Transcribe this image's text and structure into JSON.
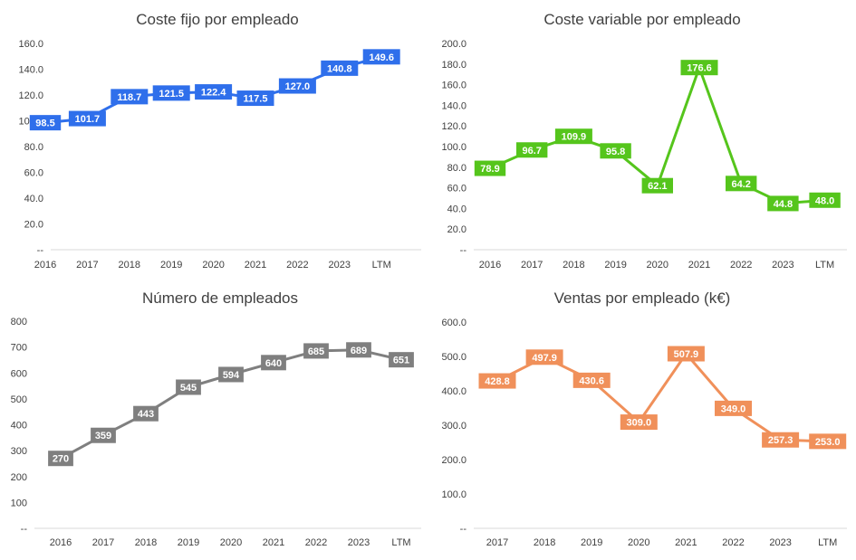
{
  "chart_data": [
    {
      "type": "line",
      "title": "Coste fijo por empleado",
      "categories": [
        "2016",
        "2017",
        "2018",
        "2019",
        "2020",
        "2021",
        "2022",
        "2023",
        "LTM"
      ],
      "values": [
        98.5,
        101.7,
        118.7,
        121.5,
        122.4,
        117.5,
        127.0,
        140.8,
        149.6
      ],
      "data_labels": [
        "98.5",
        "101.7",
        "118.7",
        "121.5",
        "122.4",
        "117.5",
        "127.0",
        "140.8",
        "149.6"
      ],
      "y_ticks": [
        "--",
        "20.0",
        "40.0",
        "60.0",
        "80.0",
        "100.0",
        "120.0",
        "140.0",
        "160.0"
      ],
      "ylim": [
        0,
        160
      ],
      "color": "#2F6FEB",
      "grid": false
    },
    {
      "type": "line",
      "title": "Coste variable por empleado",
      "categories": [
        "2016",
        "2017",
        "2018",
        "2019",
        "2020",
        "2021",
        "2022",
        "2023",
        "LTM"
      ],
      "values": [
        78.9,
        96.7,
        109.9,
        95.8,
        62.1,
        176.6,
        64.2,
        44.8,
        48.0
      ],
      "data_labels": [
        "78.9",
        "96.7",
        "109.9",
        "95.8",
        "62.1",
        "176.6",
        "64.2",
        "44.8",
        "48.0"
      ],
      "y_ticks": [
        "--",
        "20.0",
        "40.0",
        "60.0",
        "80.0",
        "100.0",
        "120.0",
        "140.0",
        "160.0",
        "180.0",
        "200.0"
      ],
      "ylim": [
        0,
        200
      ],
      "color": "#55C51C",
      "grid": false
    },
    {
      "type": "line",
      "title": "Número de empleados",
      "categories": [
        "2016",
        "2017",
        "2018",
        "2019",
        "2020",
        "2021",
        "2022",
        "2023",
        "LTM"
      ],
      "values": [
        270,
        359,
        443,
        545,
        594,
        640,
        685,
        689,
        651
      ],
      "data_labels": [
        "270",
        "359",
        "443",
        "545",
        "594",
        "640",
        "685",
        "689",
        "651"
      ],
      "y_ticks": [
        "--",
        "100",
        "200",
        "300",
        "400",
        "500",
        "600",
        "700",
        "800"
      ],
      "ylim": [
        0,
        800
      ],
      "color": "#7F7F7F",
      "grid": false
    },
    {
      "type": "line",
      "title": "Ventas por empleado (k€)",
      "categories": [
        "2017",
        "2018",
        "2019",
        "2020",
        "2021",
        "2022",
        "2023",
        "LTM"
      ],
      "values": [
        428.8,
        497.9,
        430.6,
        309.0,
        507.9,
        349.0,
        257.3,
        253.0
      ],
      "data_labels": [
        "428.8",
        "497.9",
        "430.6",
        "309.0",
        "507.9",
        "349.0",
        "257.3",
        "253.0"
      ],
      "y_ticks": [
        "--",
        "100.0",
        "200.0",
        "300.0",
        "400.0",
        "500.0",
        "600.0"
      ],
      "ylim": [
        0,
        600
      ],
      "color": "#F0905A",
      "grid": false
    }
  ]
}
